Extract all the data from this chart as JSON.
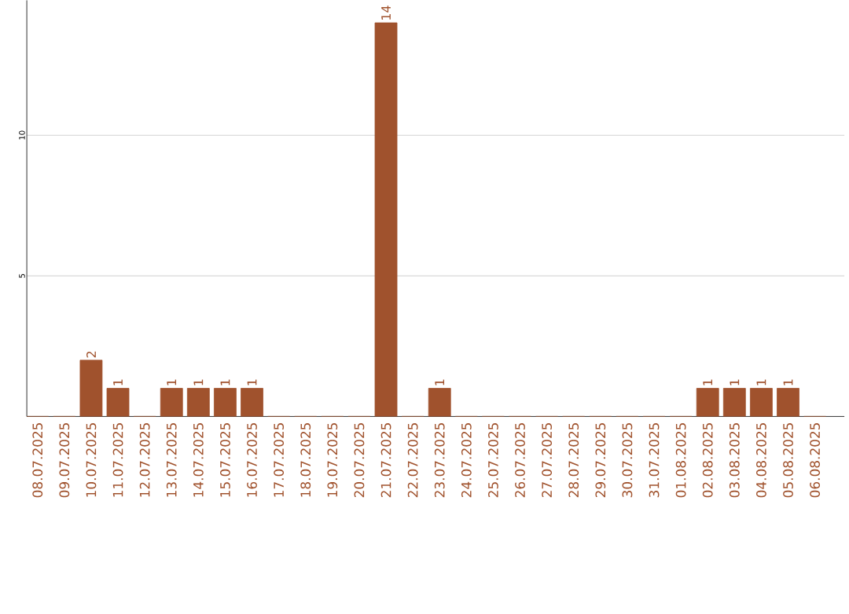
{
  "chart_data": {
    "type": "bar",
    "categories": [
      "08.07.2025",
      "09.07.2025",
      "10.07.2025",
      "11.07.2025",
      "12.07.2025",
      "13.07.2025",
      "14.07.2025",
      "15.07.2025",
      "16.07.2025",
      "17.07.2025",
      "18.07.2025",
      "19.07.2025",
      "20.07.2025",
      "21.07.2025",
      "22.07.2025",
      "23.07.2025",
      "24.07.2025",
      "25.07.2025",
      "26.07.2025",
      "27.07.2025",
      "28.07.2025",
      "29.07.2025",
      "30.07.2025",
      "31.07.2025",
      "01.08.2025",
      "02.08.2025",
      "03.08.2025",
      "04.08.2025",
      "05.08.2025",
      "06.08.2025"
    ],
    "values": [
      0,
      0,
      2,
      1,
      0,
      1,
      1,
      1,
      1,
      0,
      0,
      0,
      0,
      14,
      0,
      1,
      0,
      0,
      0,
      0,
      0,
      0,
      0,
      0,
      0,
      1,
      1,
      1,
      1,
      0
    ],
    "value_labels": [
      null,
      null,
      "2",
      "1",
      null,
      "1",
      "1",
      "1",
      "1",
      null,
      null,
      null,
      null,
      "14",
      null,
      "1",
      null,
      null,
      null,
      null,
      null,
      null,
      null,
      null,
      null,
      "1",
      "1",
      "1",
      "1",
      null
    ],
    "color": "#a0522d",
    "ylim": [
      0,
      14.8
    ],
    "yticks": [
      5,
      10
    ],
    "grid": "y"
  }
}
